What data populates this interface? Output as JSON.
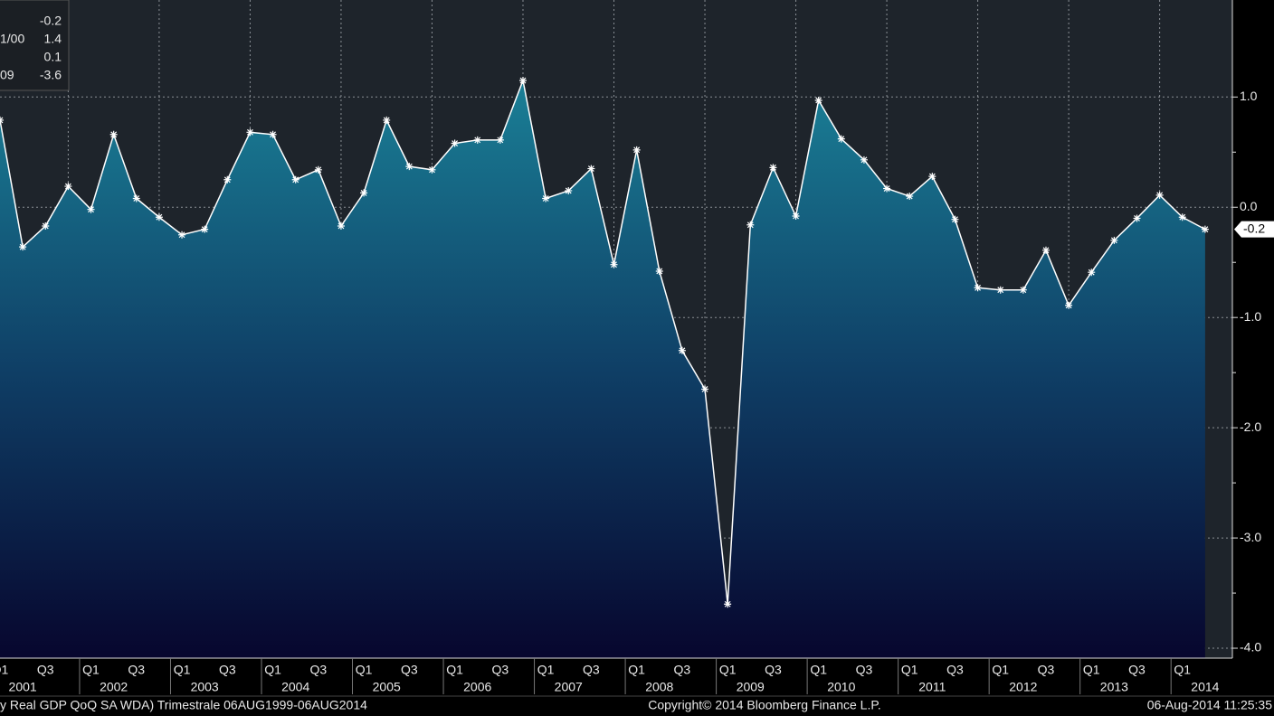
{
  "chart_data": {
    "type": "area-line",
    "categories": [
      "Q1",
      null,
      "Q3",
      null,
      "Q1",
      null,
      "Q3",
      null,
      "Q1",
      null,
      "Q3",
      null,
      "Q1",
      null,
      "Q3",
      null,
      "Q1",
      null,
      "Q3",
      null,
      "Q1",
      null,
      "Q3",
      null,
      "Q1",
      null,
      "Q3",
      null,
      "Q1",
      null,
      "Q3",
      null,
      "Q1",
      null,
      "Q3",
      null,
      "Q1",
      null,
      "Q3",
      null,
      "Q1",
      null,
      "Q3",
      null,
      "Q1",
      null,
      "Q3",
      null,
      "Q1",
      null,
      "Q3",
      null,
      "Q1",
      null
    ],
    "years": [
      "2001",
      "2002",
      "2003",
      "2004",
      "2005",
      "2006",
      "2007",
      "2008",
      "2009",
      "2010",
      "2011",
      "2012",
      "2013",
      "2014"
    ],
    "values": [
      0.79,
      -0.36,
      -0.17,
      0.19,
      -0.02,
      0.66,
      0.08,
      -0.09,
      -0.25,
      -0.2,
      0.25,
      0.68,
      0.66,
      0.25,
      0.34,
      -0.17,
      0.13,
      0.79,
      0.37,
      0.34,
      0.58,
      0.61,
      0.61,
      1.15,
      0.08,
      0.15,
      0.35,
      -0.52,
      0.52,
      -0.58,
      -1.3,
      -1.65,
      -3.6,
      -0.16,
      0.36,
      -0.08,
      0.97,
      0.62,
      0.43,
      0.17,
      0.1,
      0.28,
      -0.11,
      -0.73,
      -0.75,
      -0.75,
      -0.39,
      -0.89,
      -0.59,
      -0.3,
      -0.1,
      0.11,
      -0.09,
      -0.2
    ],
    "color": "#ffffff",
    "ylim": [
      -4.09,
      1.88
    ],
    "yticks": [
      {
        "value": -4,
        "label": "-4.0"
      },
      {
        "value": -3,
        "label": "-3.0"
      },
      {
        "value": -2,
        "label": "-2.0"
      },
      {
        "value": -1,
        "label": "-1.0"
      },
      {
        "value": 0,
        "label": "0.0"
      },
      {
        "value": 1,
        "label": "1.0"
      }
    ],
    "grid": true,
    "legend_stats": [
      {
        "value": -0.2
      },
      {
        "label": "1/00",
        "value": 1.4
      },
      {
        "value": 0.1
      },
      {
        "label": "09",
        "value": -3.6
      }
    ],
    "footer_left": "y Real GDP QoQ SA WDA)  Trimestrale 06AUG1999-06AUG2014",
    "footer_center": "Copyright© 2014 Bloomberg Finance L.P.",
    "footer_right": "06-Aug-2014 11:25:35"
  }
}
